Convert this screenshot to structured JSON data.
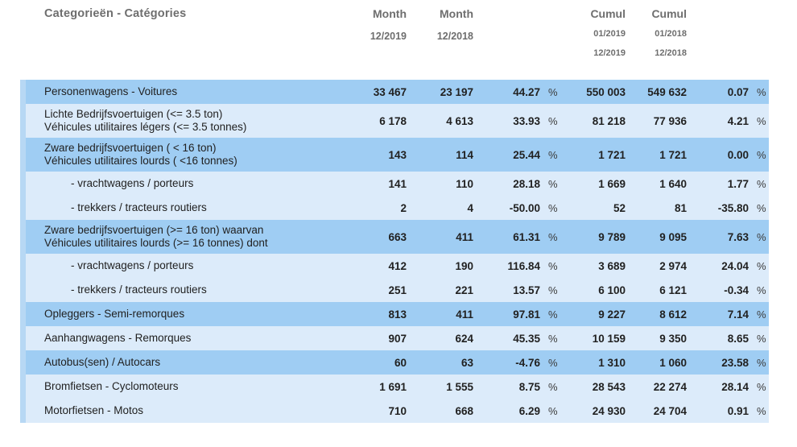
{
  "header": {
    "category_label": "Categorieën - Catégories",
    "columns": [
      {
        "line1": "Month",
        "line2": "12/2019",
        "line3": ""
      },
      {
        "line1": "Month",
        "line2": "12/2018",
        "line3": ""
      },
      {
        "line1": "Cumul",
        "line2": "01/2019",
        "line3": "12/2019"
      },
      {
        "line1": "Cumul",
        "line2": "01/2018",
        "line3": "12/2018"
      }
    ]
  },
  "table": {
    "percent_symbol": "%",
    "rows": [
      {
        "label_nl": "Personenwagens - Voitures",
        "label_fr": "",
        "indent": false,
        "shade": "dark",
        "month_2019": "33 467",
        "month_2018": "23 197",
        "month_pct": "44.27",
        "cumul_2019": "550 003",
        "cumul_2018": "549 632",
        "cumul_pct": "0.07"
      },
      {
        "label_nl": "Lichte Bedrijfsvoertuigen (<= 3.5 ton)",
        "label_fr": "Véhicules utilitaires légers (<= 3.5 tonnes)",
        "indent": false,
        "shade": "light",
        "month_2019": "6 178",
        "month_2018": "4 613",
        "month_pct": "33.93",
        "cumul_2019": "81 218",
        "cumul_2018": "77 936",
        "cumul_pct": "4.21"
      },
      {
        "label_nl": "Zware bedrijfsvoertuigen ( < 16 ton)",
        "label_fr": "Véhicules utilitaires lourds ( <16 tonnes)",
        "indent": false,
        "shade": "dark",
        "month_2019": "143",
        "month_2018": "114",
        "month_pct": "25.44",
        "cumul_2019": "1 721",
        "cumul_2018": "1 721",
        "cumul_pct": "0.00"
      },
      {
        "label_nl": "- vrachtwagens / porteurs",
        "label_fr": "",
        "indent": true,
        "shade": "light",
        "month_2019": "141",
        "month_2018": "110",
        "month_pct": "28.18",
        "cumul_2019": "1 669",
        "cumul_2018": "1 640",
        "cumul_pct": "1.77"
      },
      {
        "label_nl": "- trekkers / tracteurs routiers",
        "label_fr": "",
        "indent": true,
        "shade": "light",
        "month_2019": "2",
        "month_2018": "4",
        "month_pct": "-50.00",
        "cumul_2019": "52",
        "cumul_2018": "81",
        "cumul_pct": "-35.80"
      },
      {
        "label_nl": "Zware bedrijfsvoertuigen (>= 16 ton) waarvan",
        "label_fr": "Véhicules utilitaires lourds (>= 16 tonnes) dont",
        "indent": false,
        "shade": "dark",
        "month_2019": "663",
        "month_2018": "411",
        "month_pct": "61.31",
        "cumul_2019": "9 789",
        "cumul_2018": "9 095",
        "cumul_pct": "7.63"
      },
      {
        "label_nl": "- vrachtwagens / porteurs",
        "label_fr": "",
        "indent": true,
        "shade": "light",
        "month_2019": "412",
        "month_2018": "190",
        "month_pct": "116.84",
        "cumul_2019": "3 689",
        "cumul_2018": "2 974",
        "cumul_pct": "24.04"
      },
      {
        "label_nl": "- trekkers / tracteurs routiers",
        "label_fr": "",
        "indent": true,
        "shade": "light",
        "month_2019": "251",
        "month_2018": "221",
        "month_pct": "13.57",
        "cumul_2019": "6 100",
        "cumul_2018": "6 121",
        "cumul_pct": "-0.34"
      },
      {
        "label_nl": "Opleggers - Semi-remorques",
        "label_fr": "",
        "indent": false,
        "shade": "dark",
        "month_2019": "813",
        "month_2018": "411",
        "month_pct": "97.81",
        "cumul_2019": "9 227",
        "cumul_2018": "8 612",
        "cumul_pct": "7.14"
      },
      {
        "label_nl": "Aanhangwagens - Remorques",
        "label_fr": "",
        "indent": false,
        "shade": "light",
        "month_2019": "907",
        "month_2018": "624",
        "month_pct": "45.35",
        "cumul_2019": "10 159",
        "cumul_2018": "9 350",
        "cumul_pct": "8.65"
      },
      {
        "label_nl": "Autobus(sen) / Autocars",
        "label_fr": "",
        "indent": false,
        "shade": "dark",
        "month_2019": "60",
        "month_2018": "63",
        "month_pct": "-4.76",
        "cumul_2019": "1 310",
        "cumul_2018": "1 060",
        "cumul_pct": "23.58"
      },
      {
        "label_nl": "Bromfietsen - Cyclomoteurs",
        "label_fr": "",
        "indent": false,
        "shade": "light",
        "month_2019": "1 691",
        "month_2018": "1 555",
        "month_pct": "8.75",
        "cumul_2019": "28 543",
        "cumul_2018": "22 274",
        "cumul_pct": "28.14"
      },
      {
        "label_nl": "Motorfietsen - Motos",
        "label_fr": "",
        "indent": false,
        "shade": "light",
        "month_2019": "710",
        "month_2018": "668",
        "month_pct": "6.29",
        "cumul_2019": "24 930",
        "cumul_2018": "24 704",
        "cumul_pct": "0.91"
      }
    ]
  },
  "colors": {
    "row_dark": "#9fcdf3",
    "row_light": "#dcebfa",
    "edge_strip": "#b7d8f4",
    "header_text": "#6e6e6e",
    "data_text": "#212121"
  }
}
